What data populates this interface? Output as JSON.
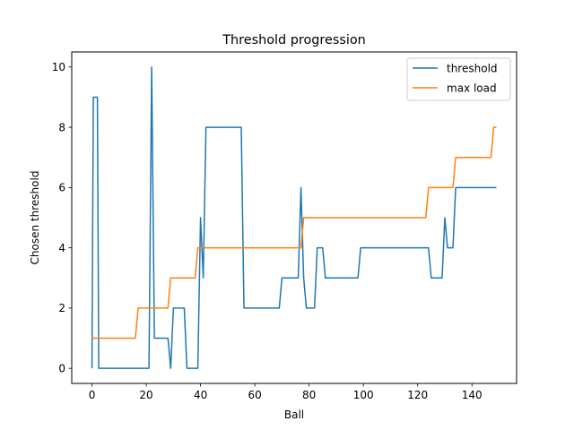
{
  "chart_data": {
    "type": "line",
    "title": "Threshold progression",
    "xlabel": "Ball",
    "ylabel": "Chosen threshold",
    "xlim": [
      -7.45,
      156.45
    ],
    "ylim": [
      -0.5,
      10.5
    ],
    "xticks": [
      0,
      20,
      40,
      60,
      80,
      100,
      120,
      140
    ],
    "yticks": [
      0,
      2,
      4,
      6,
      8,
      10
    ],
    "grid": false,
    "legend_position": "upper right",
    "series": [
      {
        "name": "threshold",
        "color": "#1f77b4",
        "points": [
          [
            0,
            0
          ],
          [
            0.5,
            9
          ],
          [
            2,
            9
          ],
          [
            2.5,
            0
          ],
          [
            21,
            0
          ],
          [
            22,
            10
          ],
          [
            23,
            1
          ],
          [
            27,
            1
          ],
          [
            28,
            1
          ],
          [
            29,
            0
          ],
          [
            30,
            2
          ],
          [
            33,
            2
          ],
          [
            34,
            2
          ],
          [
            35,
            0
          ],
          [
            38,
            0
          ],
          [
            39,
            0
          ],
          [
            40,
            5
          ],
          [
            41,
            3
          ],
          [
            42,
            8
          ],
          [
            54,
            8
          ],
          [
            55,
            8
          ],
          [
            56,
            2
          ],
          [
            68,
            2
          ],
          [
            69,
            2
          ],
          [
            70,
            3
          ],
          [
            76,
            3
          ],
          [
            77,
            6
          ],
          [
            78,
            3
          ],
          [
            79,
            2
          ],
          [
            82,
            2
          ],
          [
            83,
            4
          ],
          [
            85,
            4
          ],
          [
            86,
            3
          ],
          [
            95,
            3
          ],
          [
            98,
            3
          ],
          [
            99,
            4
          ],
          [
            124,
            4
          ],
          [
            125,
            3
          ],
          [
            128,
            3
          ],
          [
            129,
            3
          ],
          [
            130,
            5
          ],
          [
            131,
            4
          ],
          [
            133,
            4
          ],
          [
            134,
            6
          ],
          [
            149,
            6
          ]
        ]
      },
      {
        "name": "max load",
        "color": "#ff7f0e",
        "points": [
          [
            0,
            1
          ],
          [
            16,
            1
          ],
          [
            17,
            2
          ],
          [
            28,
            2
          ],
          [
            29,
            3
          ],
          [
            38,
            3
          ],
          [
            39,
            4
          ],
          [
            77,
            4
          ],
          [
            78,
            5
          ],
          [
            123,
            5
          ],
          [
            124,
            6
          ],
          [
            133,
            6
          ],
          [
            134,
            7
          ],
          [
            147,
            7
          ],
          [
            148,
            8
          ],
          [
            149,
            8
          ]
        ]
      }
    ]
  }
}
